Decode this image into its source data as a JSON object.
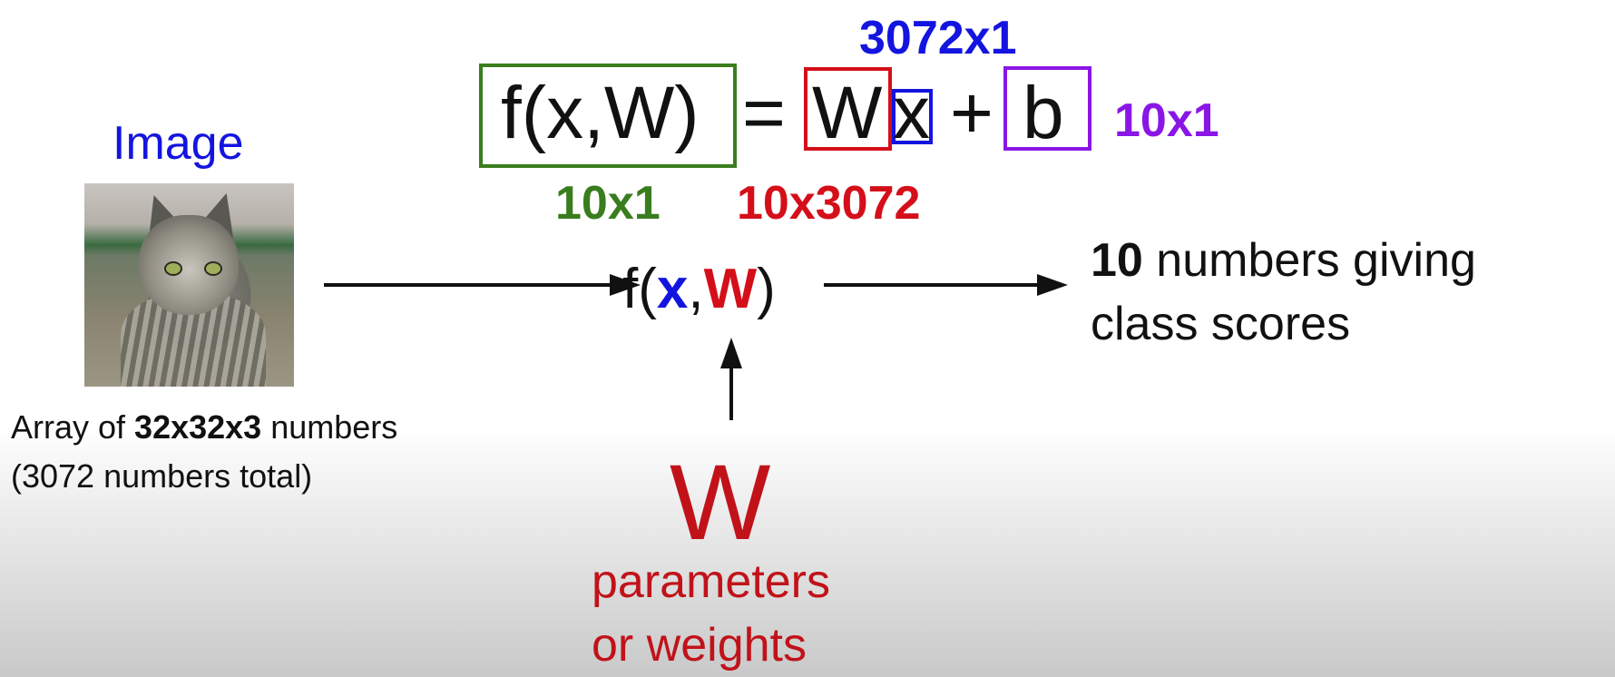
{
  "equation": {
    "lhs": "f(x,W)",
    "equals": "=",
    "W": "W",
    "x": "x",
    "plus": "+",
    "b": "b"
  },
  "dimensions": {
    "x": "3072x1",
    "b": "10x1",
    "f": "10x1",
    "W": "10x3072"
  },
  "image_title": "Image",
  "image_caption": {
    "line1_prefix": "Array of ",
    "line1_bold": "32x32x3",
    "line1_suffix": " numbers",
    "line2": "(3072 numbers total)"
  },
  "function_call": {
    "prefix": "f(",
    "x": "x",
    "comma": ",",
    "W": "W",
    "suffix": ")"
  },
  "output": {
    "bold": "10",
    "line1_rest": " numbers giving",
    "line2": "class scores"
  },
  "params": {
    "symbol": "W",
    "line1": "parameters",
    "line2": "or weights"
  },
  "colors": {
    "green": "#3a7d1e",
    "red": "#d40f1a",
    "blue": "#1414e0",
    "purple": "#8a16e6",
    "dark_red": "#c1121a"
  }
}
